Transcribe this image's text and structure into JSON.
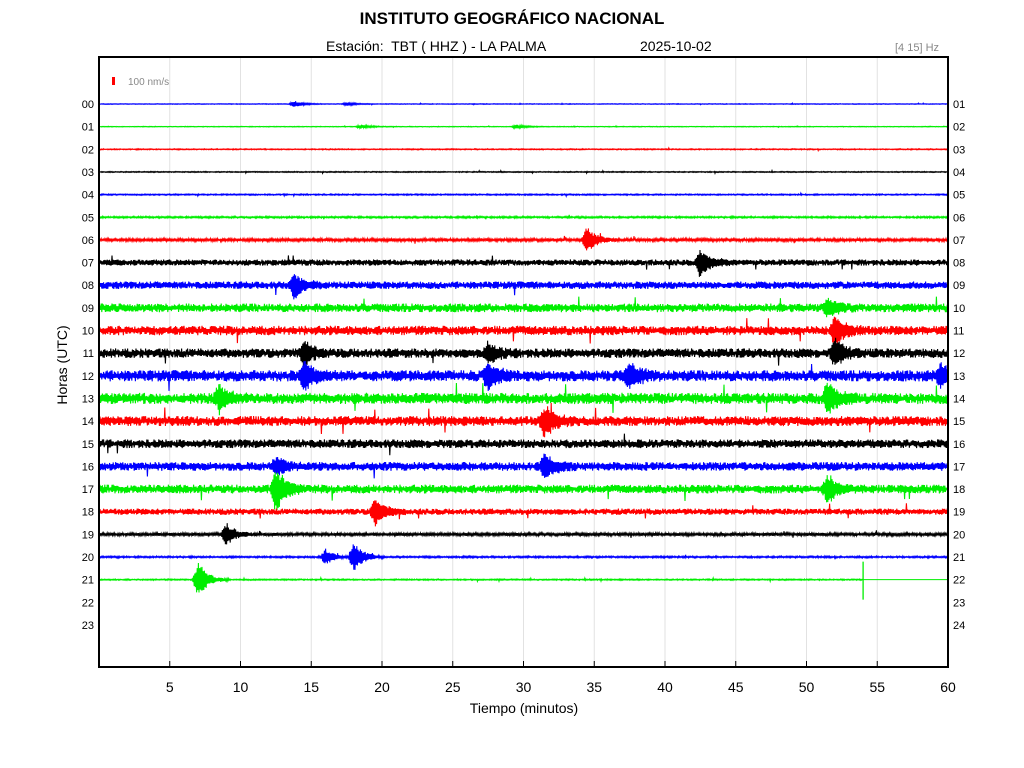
{
  "header": {
    "title": "INSTITUTO GEOGRÁFICO NACIONAL",
    "station_text": "Estación:  TBT ( HHZ ) - LA PALMA",
    "date": "2025-10-02",
    "filter": "[4 15] Hz"
  },
  "chart_data": {
    "type": "line",
    "title": "INSTITUTO GEOGRÁFICO NACIONAL",
    "subtitle": "Estación:  TBT ( HHZ ) - LA PALMA",
    "xlabel": "Tiempo (minutos)",
    "ylabel": "Horas (UTC)",
    "xlim": [
      0,
      60
    ],
    "x_ticks": [
      "5",
      "10",
      "15",
      "20",
      "25",
      "30",
      "35",
      "40",
      "45",
      "50",
      "55",
      "60"
    ],
    "y_ticks_left": [
      "00",
      "01",
      "02",
      "03",
      "04",
      "05",
      "06",
      "07",
      "08",
      "09",
      "10",
      "11",
      "12",
      "13",
      "14",
      "15",
      "16",
      "17",
      "18",
      "19",
      "20",
      "21",
      "22",
      "23"
    ],
    "y_ticks_right": [
      "01",
      "02",
      "03",
      "04",
      "05",
      "06",
      "07",
      "08",
      "09",
      "10",
      "11",
      "12",
      "13",
      "14",
      "15",
      "16",
      "17",
      "18",
      "19",
      "20",
      "21",
      "22",
      "23",
      "24"
    ],
    "grid": "vertical",
    "scale_label": "100 nm/s",
    "colors": [
      "#0000ff",
      "#00ee00",
      "#ff0000",
      "#000000"
    ],
    "series": [
      {
        "hour": 0,
        "color": "#0000ff",
        "noise": 0.25,
        "events": [
          {
            "x": 13.8,
            "amp": 3
          },
          {
            "x": 17.5,
            "amp": 1.5
          }
        ]
      },
      {
        "hour": 1,
        "color": "#00ee00",
        "noise": 0.25,
        "events": [
          {
            "x": 18.5,
            "amp": 2
          },
          {
            "x": 29.5,
            "amp": 2
          }
        ]
      },
      {
        "hour": 2,
        "color": "#ff0000",
        "noise": 0.4,
        "events": []
      },
      {
        "hour": 3,
        "color": "#000000",
        "noise": 0.4,
        "events": []
      },
      {
        "hour": 4,
        "color": "#0000ff",
        "noise": 0.5,
        "events": []
      },
      {
        "hour": 5,
        "color": "#00ee00",
        "noise": 0.7,
        "events": []
      },
      {
        "hour": 6,
        "color": "#ff0000",
        "noise": 1.2,
        "events": [
          {
            "x": 34.5,
            "amp": 14
          }
        ]
      },
      {
        "hour": 7,
        "color": "#000000",
        "noise": 2.5,
        "events": [
          {
            "x": 42.5,
            "amp": 14
          }
        ]
      },
      {
        "hour": 8,
        "color": "#0000ff",
        "noise": 3.0,
        "events": [
          {
            "x": 13.8,
            "amp": 12
          }
        ]
      },
      {
        "hour": 9,
        "color": "#00ee00",
        "noise": 3.5,
        "events": [
          {
            "x": 51.5,
            "amp": 8
          }
        ]
      },
      {
        "hour": 10,
        "color": "#ff0000",
        "noise": 3.8,
        "events": [
          {
            "x": 52.0,
            "amp": 14
          }
        ]
      },
      {
        "hour": 11,
        "color": "#000000",
        "noise": 3.8,
        "events": [
          {
            "x": 14.5,
            "amp": 12
          },
          {
            "x": 27.5,
            "amp": 10
          },
          {
            "x": 52.0,
            "amp": 14
          }
        ]
      },
      {
        "hour": 12,
        "color": "#0000ff",
        "noise": 4.5,
        "events": [
          {
            "x": 14.5,
            "amp": 14
          },
          {
            "x": 27.5,
            "amp": 14
          },
          {
            "x": 37.5,
            "amp": 14
          },
          {
            "x": 59.5,
            "amp": 12
          }
        ]
      },
      {
        "hour": 13,
        "color": "#00ee00",
        "noise": 4.5,
        "events": [
          {
            "x": 8.5,
            "amp": 12
          },
          {
            "x": 51.5,
            "amp": 16
          }
        ]
      },
      {
        "hour": 14,
        "color": "#ff0000",
        "noise": 4.0,
        "events": [
          {
            "x": 31.5,
            "amp": 16
          }
        ]
      },
      {
        "hour": 15,
        "color": "#000000",
        "noise": 3.5,
        "events": []
      },
      {
        "hour": 16,
        "color": "#0000ff",
        "noise": 3.5,
        "events": [
          {
            "x": 31.5,
            "amp": 14
          },
          {
            "x": 12.5,
            "amp": 8
          }
        ]
      },
      {
        "hour": 17,
        "color": "#00ee00",
        "noise": 3.5,
        "events": [
          {
            "x": 12.5,
            "amp": 22
          },
          {
            "x": 51.5,
            "amp": 14
          }
        ]
      },
      {
        "hour": 18,
        "color": "#ff0000",
        "noise": 2.5,
        "events": [
          {
            "x": 19.5,
            "amp": 14
          }
        ]
      },
      {
        "hour": 19,
        "color": "#000000",
        "noise": 1.2,
        "events": [
          {
            "x": 9.0,
            "amp": 12
          }
        ]
      },
      {
        "hour": 20,
        "color": "#0000ff",
        "noise": 0.7,
        "events": [
          {
            "x": 18.0,
            "amp": 16
          },
          {
            "x": 16.0,
            "amp": 8
          }
        ]
      },
      {
        "hour": 21,
        "color": "#00ee00",
        "noise": 0.5,
        "events": [
          {
            "x": 7.0,
            "amp": 20
          }
        ],
        "end_minute": 54.0
      }
    ]
  }
}
